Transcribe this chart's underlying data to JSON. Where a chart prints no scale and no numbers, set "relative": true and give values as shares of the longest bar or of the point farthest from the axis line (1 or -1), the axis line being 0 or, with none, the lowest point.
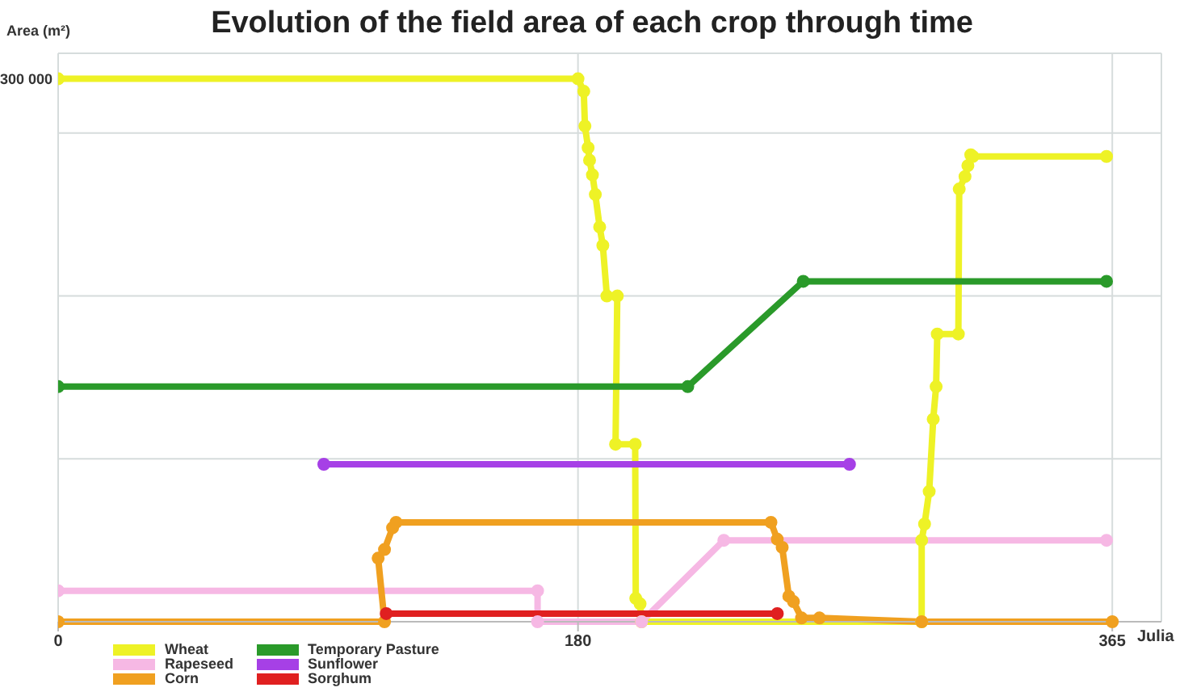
{
  "chart_data": {
    "type": "line",
    "title": "Evolution of the field area of each crop through time",
    "ylabel": "Area (m²)",
    "xlabel": "Julia",
    "xlim": [
      0,
      382
    ],
    "xticks": [
      0,
      180,
      365
    ],
    "relative": true,
    "annotations": [
      "300 000"
    ],
    "grid": true,
    "legend": "bottom left",
    "marker": "circle",
    "line_style": "solid",
    "series": [
      {
        "name": "Wheat",
        "color": "#eef226",
        "x": [
          0,
          180,
          182,
          182.4,
          183.5,
          184,
          185,
          186,
          187.5,
          188.6,
          190,
          193.6,
          193,
          199.8,
          200,
          201.5,
          202,
          299,
          299,
          300,
          301.6,
          303,
          304,
          304.4,
          311.7,
          312,
          314,
          315,
          316,
          316.7,
          363
        ],
        "values": [
          1,
          1,
          0.977,
          0.913,
          0.873,
          0.85,
          0.823,
          0.787,
          0.727,
          0.693,
          0.6,
          0.6,
          0.327,
          0.327,
          0.043,
          0.033,
          0,
          0,
          0.15,
          0.18,
          0.24,
          0.373,
          0.433,
          0.53,
          0.53,
          0.797,
          0.82,
          0.84,
          0.86,
          0.857,
          0.857
        ]
      },
      {
        "name": "Rapeseed",
        "color": "#f6b8e4",
        "x": [
          0,
          166,
          166,
          202,
          230.5,
          363
        ],
        "values": [
          0.057,
          0.057,
          0,
          0,
          0.15,
          0.15
        ]
      },
      {
        "name": "Corn",
        "color": "#f0a020",
        "x": [
          0,
          113,
          110.8,
          113,
          115.8,
          117,
          246.8,
          249,
          250.7,
          253,
          254.6,
          257.4,
          263.6,
          299,
          365
        ],
        "values": [
          0,
          0,
          0.117,
          0.133,
          0.173,
          0.183,
          0.183,
          0.152,
          0.137,
          0.047,
          0.037,
          0.007,
          0.007,
          0,
          0
        ]
      },
      {
        "name": "Temporary Pasture",
        "color": "#2a9a2a",
        "x": [
          0,
          218,
          258,
          363
        ],
        "values": [
          0.433,
          0.433,
          0.627,
          0.627
        ]
      },
      {
        "name": "Sunflower",
        "color": "#a640e6",
        "x": [
          92,
          274
        ],
        "values": [
          0.29,
          0.29
        ]
      },
      {
        "name": "Sorghum",
        "color": "#e02020",
        "x": [
          113.6,
          249
        ],
        "values": [
          0.015,
          0.015
        ]
      }
    ]
  }
}
